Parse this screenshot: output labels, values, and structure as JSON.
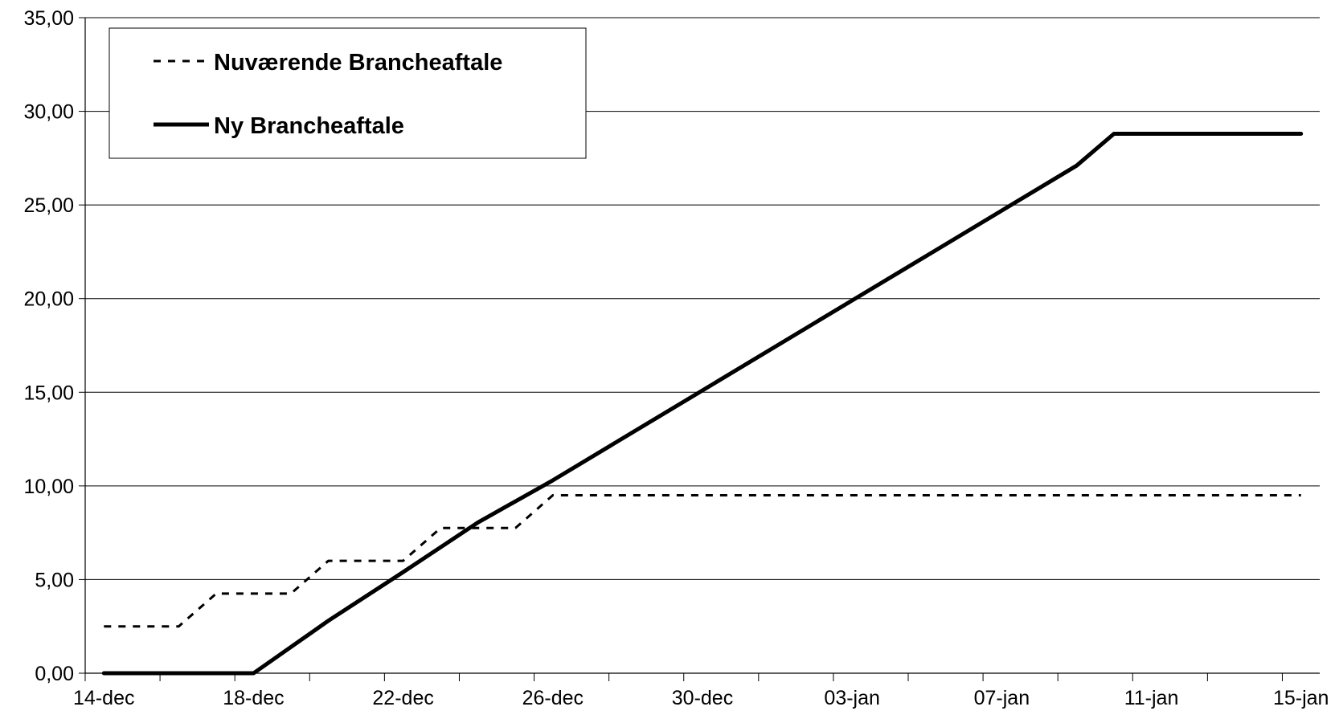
{
  "chart_data": {
    "type": "line",
    "title": "",
    "xlabel": "",
    "ylabel": "",
    "x_tick_labels": [
      "14-dec",
      "18-dec",
      "22-dec",
      "26-dec",
      "30-dec",
      "03-jan",
      "07-jan",
      "11-jan",
      "15-jan"
    ],
    "y_tick_labels": [
      "0,00",
      "5,00",
      "10,00",
      "15,00",
      "20,00",
      "25,00",
      "30,00",
      "35,00"
    ],
    "ylim": [
      0,
      35
    ],
    "y_step": 5,
    "x_day_range": [
      0,
      33
    ],
    "x_tick_step_days": 4,
    "x_minor_step_days": 2,
    "grid": "horizontal",
    "legend_position": "top-left",
    "series": [
      {
        "name": "Nuværende Brancheaftale",
        "style": "dotted",
        "color": "#000000",
        "points": [
          [
            0.5,
            2.5
          ],
          [
            2.5,
            2.5
          ],
          [
            3.5,
            4.25
          ],
          [
            5.5,
            4.25
          ],
          [
            6.5,
            6.0
          ],
          [
            8.5,
            6.0
          ],
          [
            9.5,
            7.75
          ],
          [
            11.5,
            7.75
          ],
          [
            12.5,
            9.5
          ],
          [
            32.5,
            9.5
          ]
        ]
      },
      {
        "name": "Ny Brancheaftale",
        "style": "solid",
        "color": "#000000",
        "points": [
          [
            0.5,
            0.0
          ],
          [
            4.5,
            0.0
          ],
          [
            6.5,
            2.8
          ],
          [
            8.5,
            5.4
          ],
          [
            10.5,
            8.05
          ],
          [
            12.5,
            10.3
          ],
          [
            14.5,
            12.7
          ],
          [
            16.5,
            15.1
          ],
          [
            18.5,
            17.5
          ],
          [
            20.5,
            19.9
          ],
          [
            22.5,
            22.3
          ],
          [
            24.5,
            24.7
          ],
          [
            26.5,
            27.1
          ],
          [
            27.5,
            28.8
          ],
          [
            32.5,
            28.8
          ]
        ]
      }
    ]
  }
}
